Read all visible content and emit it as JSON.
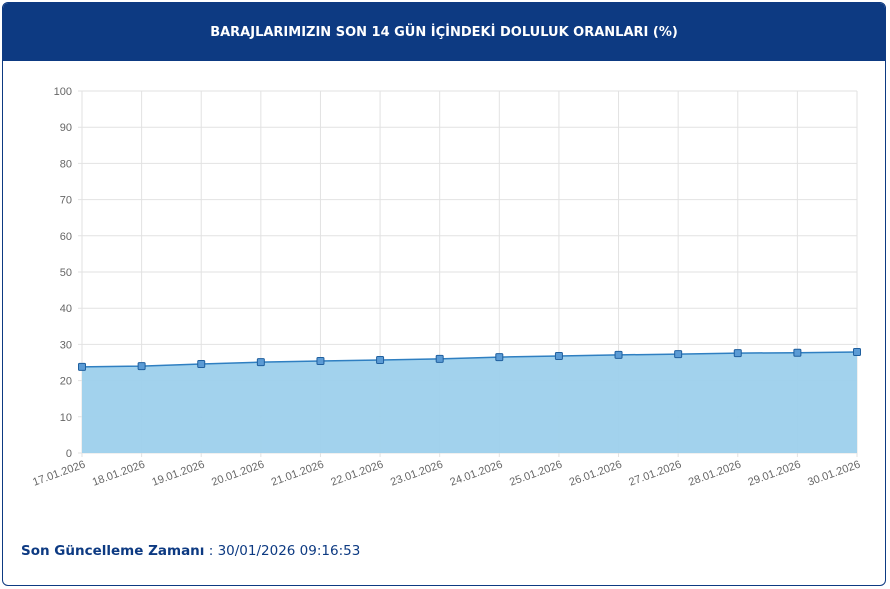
{
  "chart_data": {
    "type": "area",
    "title": "BARAJLARIMIZIN SON 14 GÜN İÇİNDEKİ DOLULUK ORANLARI (%)",
    "categories": [
      "17.01.2026",
      "18.01.2026",
      "19.01.2026",
      "20.01.2026",
      "21.01.2026",
      "22.01.2026",
      "23.01.2026",
      "24.01.2026",
      "25.01.2026",
      "26.01.2026",
      "27.01.2026",
      "28.01.2026",
      "29.01.2026",
      "30.01.2026"
    ],
    "values": [
      23.8,
      24.0,
      24.6,
      25.1,
      25.4,
      25.7,
      26.0,
      26.5,
      26.8,
      27.1,
      27.3,
      27.6,
      27.7,
      27.9
    ],
    "color": "#2f7fc1",
    "fill": "#9dd0ec",
    "ylim": [
      0,
      100
    ],
    "yticks": [
      0,
      10,
      20,
      30,
      40,
      50,
      60,
      70,
      80,
      90,
      100
    ],
    "grid": true
  },
  "footer": {
    "label": "Son Güncelleme Zamanı",
    "separator": ":",
    "value": "30/01/2026 09:16:53"
  }
}
